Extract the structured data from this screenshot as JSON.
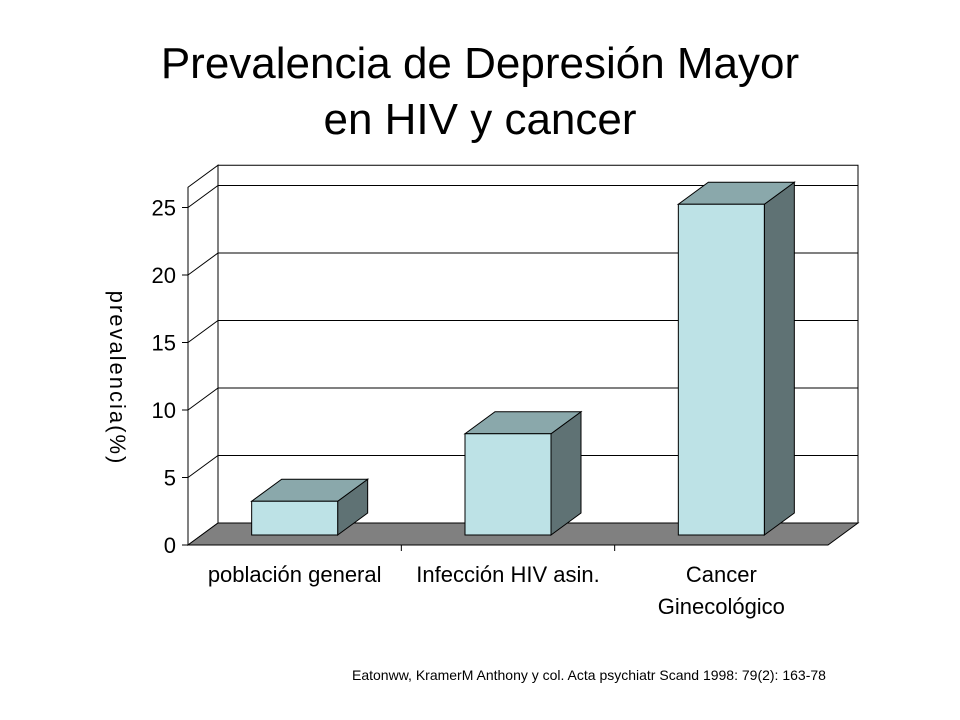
{
  "title_lines": [
    "Prevalencia de Depresión  Mayor",
    "en HIV  y cancer"
  ],
  "citation": "Eatonww, KramerM  Anthony y col. Acta  psychiatr Scand 1998: 79(2): 163-78",
  "chart_data": {
    "type": "bar",
    "style": "3d",
    "categories": [
      [
        "población general"
      ],
      [
        "Infección HIV asin."
      ],
      [
        "Cancer",
        "Ginecológico"
      ]
    ],
    "values": [
      2.5,
      7.5,
      24.5
    ],
    "ylabel": "prevalencia(%)",
    "xlabel": "",
    "ylim": [
      0,
      25
    ],
    "yticks": [
      0,
      5,
      10,
      15,
      20,
      25
    ],
    "grid": true,
    "legend": "none",
    "colors": {
      "bar_front": "#bde2e6",
      "bar_top": "#8aa8ab",
      "bar_side": "#5f7274",
      "floor": "#808080",
      "gridline": "#000000"
    }
  }
}
